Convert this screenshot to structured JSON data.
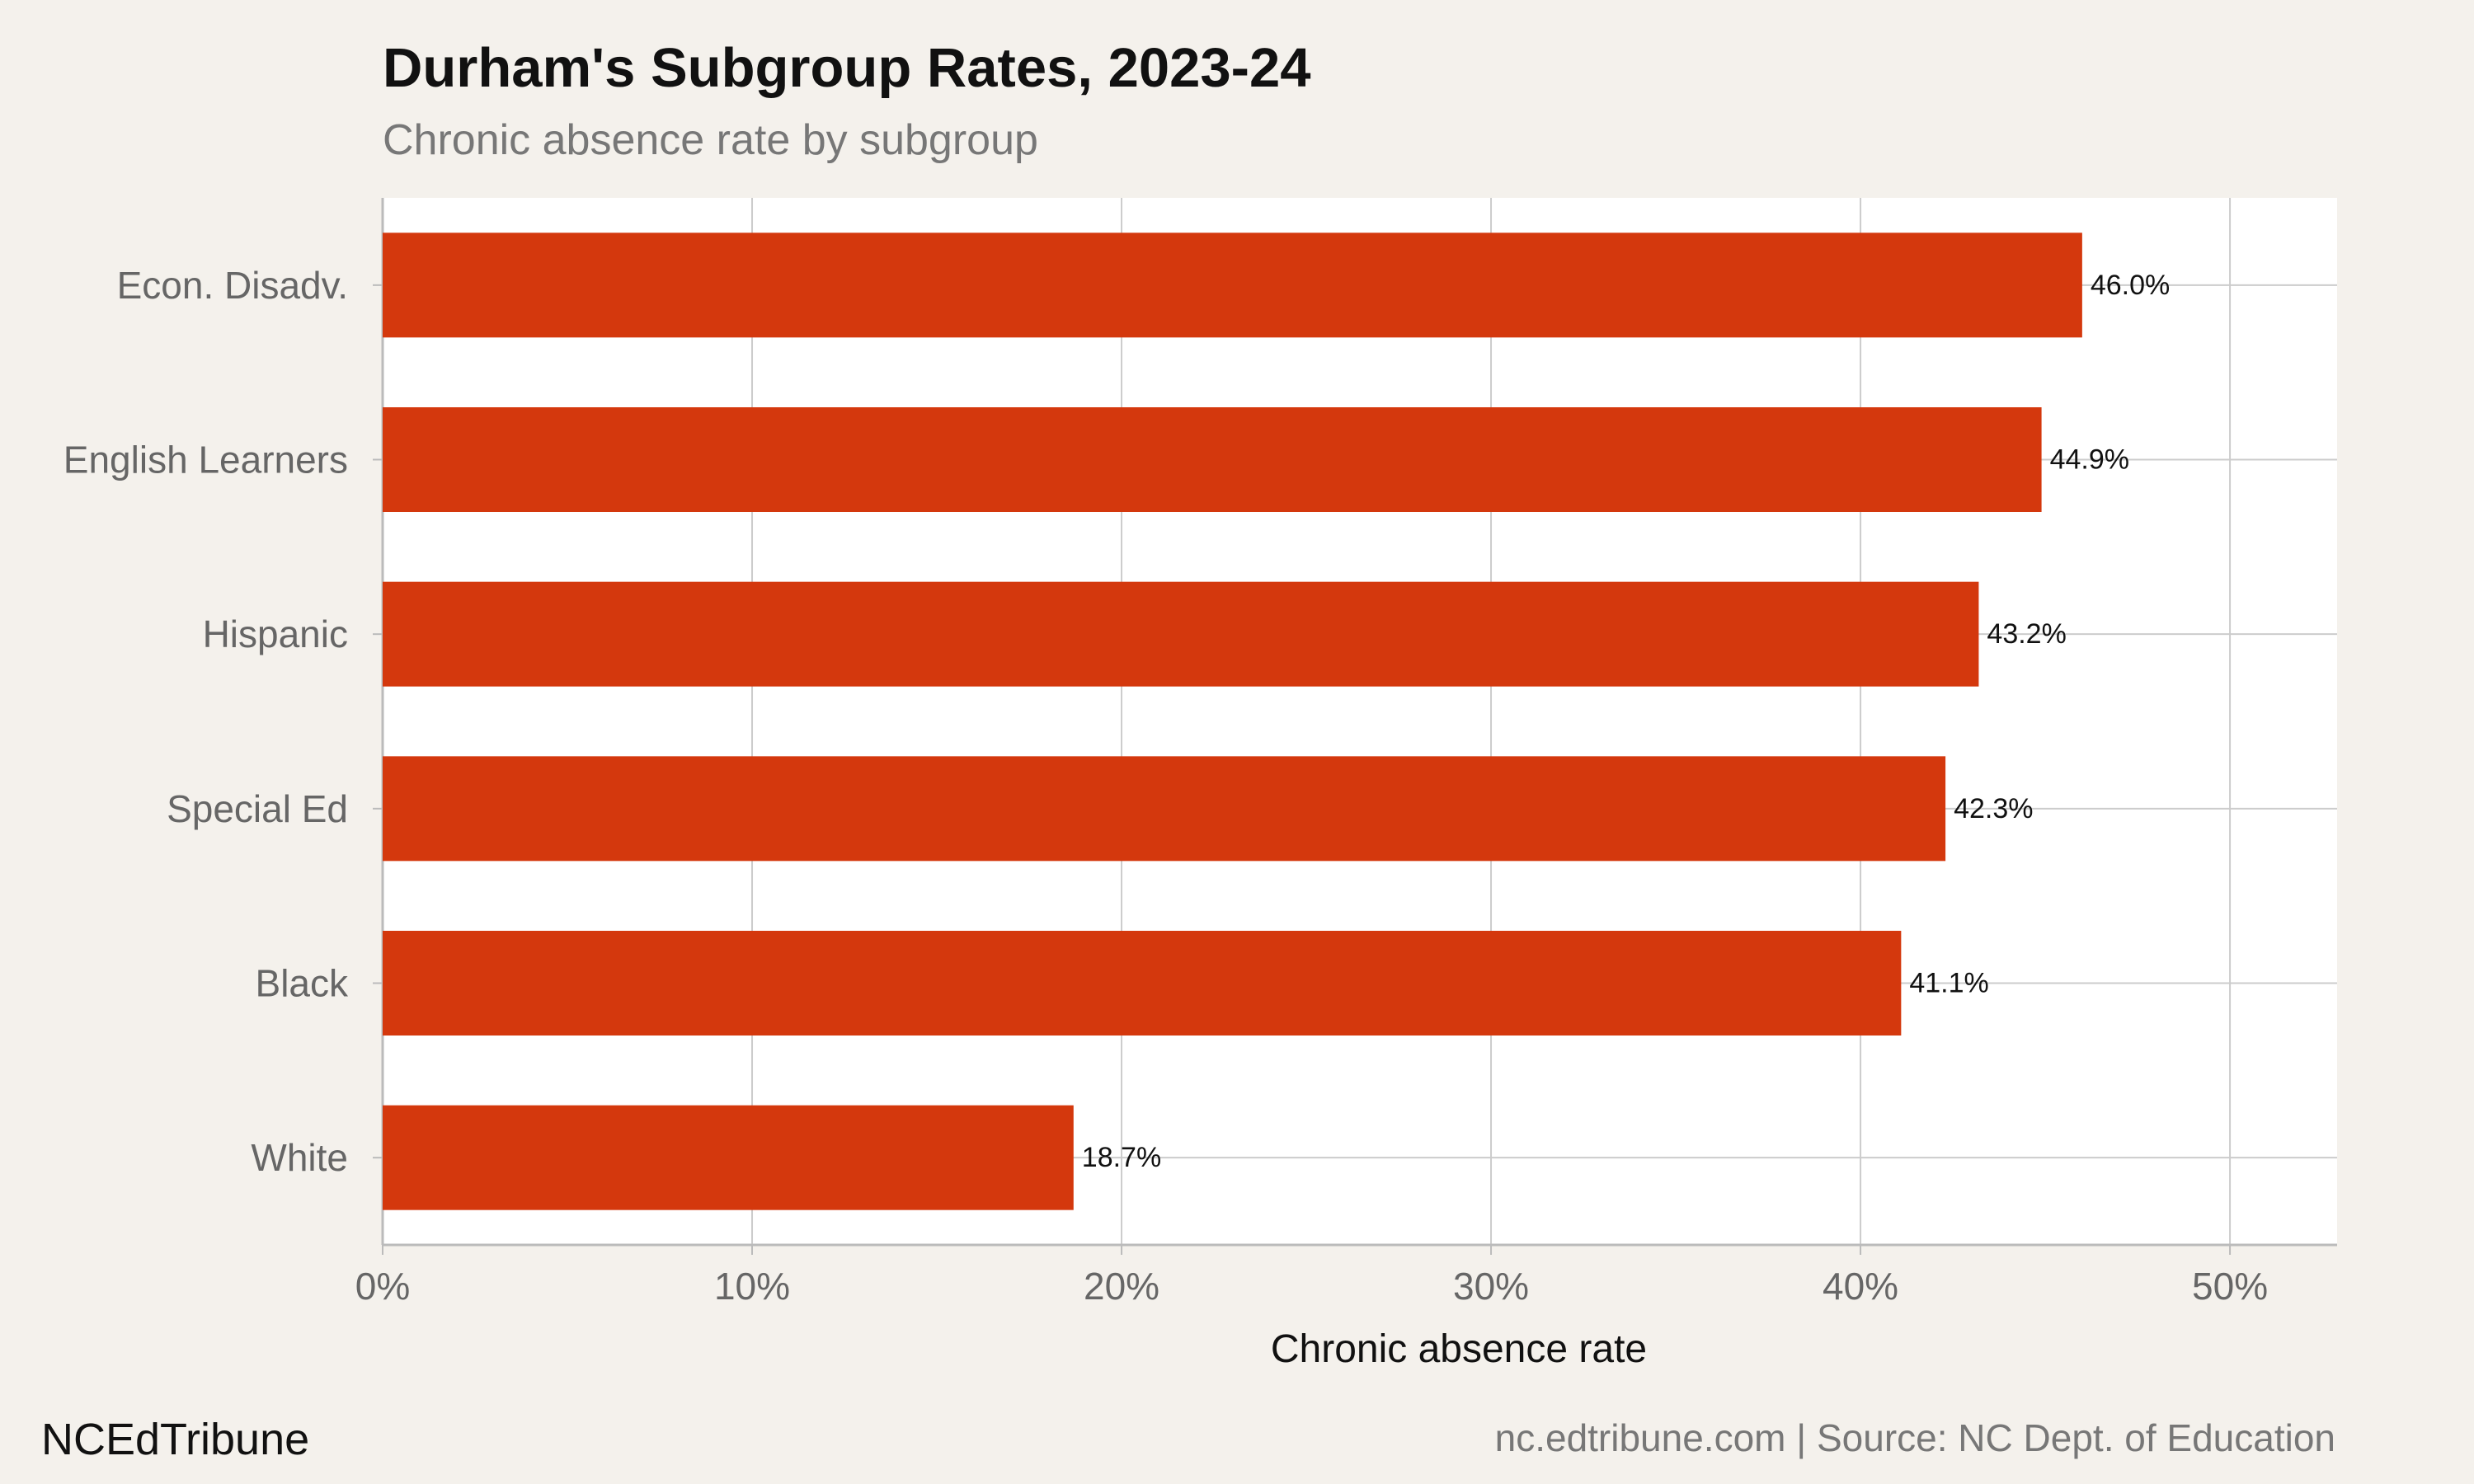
{
  "header": {
    "title": "Durham's Subgroup Rates, 2023-24",
    "subtitle": "Chronic absence rate by subgroup"
  },
  "footer": {
    "brand": "NCEdTribune",
    "source": "nc.edtribune.com | Source: NC Dept. of Education"
  },
  "colors": {
    "bar": "#d4380d",
    "background": "#f4f1ec",
    "panel": "#ffffff",
    "grid": "#cccccc"
  },
  "chart_data": {
    "type": "bar",
    "orientation": "horizontal",
    "categories": [
      "Econ. Disadv.",
      "English Learners",
      "Hispanic",
      "Special Ed",
      "Black",
      "White"
    ],
    "values": [
      46.0,
      44.9,
      43.2,
      42.3,
      41.1,
      18.7
    ],
    "value_labels": [
      "46.0%",
      "44.9%",
      "43.2%",
      "42.3%",
      "41.1%",
      "18.7%"
    ],
    "xlabel": "Chronic absence rate",
    "ylabel": "",
    "xlim": [
      0,
      52.9
    ],
    "xticks": [
      0,
      10,
      20,
      30,
      40,
      50
    ],
    "xtick_labels": [
      "0%",
      "10%",
      "20%",
      "30%",
      "40%",
      "50%"
    ],
    "grid": true,
    "legend": "none"
  }
}
